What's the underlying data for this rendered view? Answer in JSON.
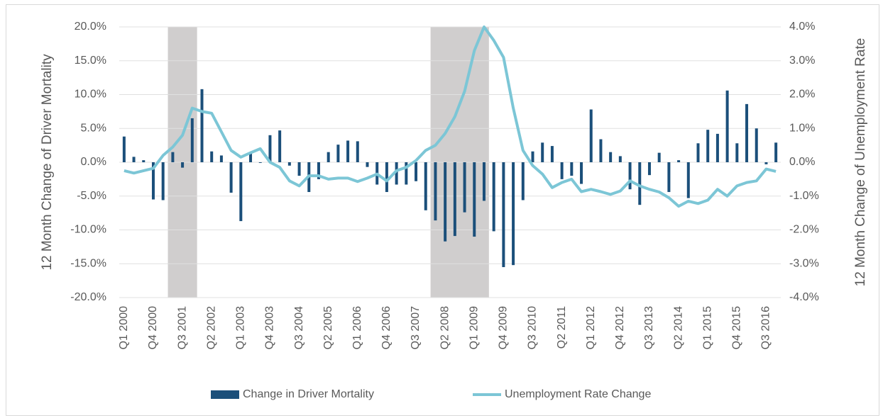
{
  "chart_data": {
    "type": "bar-line",
    "y_label": "12 Month Change of Driver Mortality",
    "y2_label": "12 Month Change of Unemployment Rate",
    "categories": [
      "Q1 2000",
      null,
      null,
      "Q4 2000",
      null,
      null,
      "Q3 2001",
      null,
      null,
      "Q2 2002",
      null,
      null,
      "Q1 2003",
      null,
      null,
      "Q4 2003",
      null,
      null,
      "Q3 2004",
      null,
      null,
      "Q2 2005",
      null,
      null,
      "Q1 2006",
      null,
      null,
      "Q4 2006",
      null,
      null,
      "Q3 2007",
      null,
      null,
      "Q2 2008",
      null,
      null,
      "Q1 2009",
      null,
      null,
      "Q4 2009",
      null,
      null,
      "Q3 2010",
      null,
      null,
      "Q2 2011",
      null,
      null,
      "Q1 2012",
      null,
      null,
      "Q4 2012",
      null,
      null,
      "Q3 2013",
      null,
      null,
      "Q2 2014",
      null,
      null,
      "Q1 2015",
      null,
      null,
      "Q4 2015",
      null,
      null,
      "Q3 2016",
      null
    ],
    "series": [
      {
        "name": "Change in Driver Mortality",
        "type": "bar",
        "color": "#1b4f7a",
        "values": [
          3.8,
          0.8,
          0.3,
          -5.5,
          -5.6,
          1.5,
          -0.8,
          6.5,
          10.8,
          1.6,
          1.0,
          -4.5,
          -8.7,
          1.5,
          -0.1,
          4.0,
          4.7,
          -0.5,
          -2.0,
          -4.4,
          -2.5,
          1.5,
          2.6,
          3.2,
          3.1,
          -0.7,
          -3.3,
          -4.4,
          -3.3,
          -3.3,
          -2.8,
          -7.1,
          -8.6,
          -11.7,
          -10.9,
          -7.4,
          -11.0,
          -5.7,
          -10.2,
          -15.5,
          -15.2,
          -5.6,
          1.6,
          2.9,
          2.4,
          -2.5,
          -2.0,
          -3.2,
          7.8,
          3.4,
          1.5,
          0.9,
          -4.0,
          -6.3,
          -1.9,
          1.4,
          -4.4,
          0.3,
          -5.3,
          2.8,
          4.8,
          4.2,
          10.6,
          2.8,
          8.6,
          5.0,
          -0.3,
          2.9
        ]
      },
      {
        "name": "Unemployment Rate Change",
        "type": "line",
        "axis": "y2",
        "color": "#7cc6d6",
        "values": [
          -0.25,
          -0.32,
          -0.25,
          -0.18,
          0.2,
          0.45,
          0.8,
          1.6,
          1.5,
          1.45,
          0.9,
          0.35,
          0.15,
          0.28,
          0.4,
          0.0,
          -0.15,
          -0.55,
          -0.7,
          -0.4,
          -0.4,
          -0.5,
          -0.47,
          -0.47,
          -0.57,
          -0.47,
          -0.35,
          -0.55,
          -0.25,
          -0.15,
          0.05,
          0.35,
          0.5,
          0.85,
          1.35,
          2.1,
          3.3,
          4.0,
          3.6,
          3.1,
          1.6,
          0.35,
          -0.1,
          -0.35,
          -0.75,
          -0.6,
          -0.5,
          -0.87,
          -0.8,
          -0.87,
          -0.95,
          -0.85,
          -0.55,
          -0.7,
          -0.8,
          -0.88,
          -1.05,
          -1.3,
          -1.15,
          -1.22,
          -1.12,
          -0.8,
          -1.0,
          -0.7,
          -0.6,
          -0.55,
          -0.2,
          -0.27
        ]
      }
    ],
    "shaded_spans": [
      [
        5,
        8
      ],
      [
        32,
        38
      ]
    ],
    "shade_color": "#d0cece",
    "ylim": [
      -20,
      20
    ],
    "yticks": [
      {
        "value": 20,
        "label": "20.0%"
      },
      {
        "value": 15,
        "label": "15.0%"
      },
      {
        "value": 10,
        "label": "10.0%"
      },
      {
        "value": 5,
        "label": "5.0%"
      },
      {
        "value": 0,
        "label": "0.0%"
      },
      {
        "value": -5,
        "label": "-5.0%"
      },
      {
        "value": -10,
        "label": "-10.0%"
      },
      {
        "value": -15,
        "label": "-15.0%"
      },
      {
        "value": -20,
        "label": "-20.0%"
      }
    ],
    "y2lim": [
      -4,
      4
    ],
    "y2ticks": [
      {
        "value": 4,
        "label": "4.0%"
      },
      {
        "value": 3,
        "label": "3.0%"
      },
      {
        "value": 2,
        "label": "2.0%"
      },
      {
        "value": 1,
        "label": "1.0%"
      },
      {
        "value": 0,
        "label": "0.0%"
      },
      {
        "value": -1,
        "label": "-1.0%"
      },
      {
        "value": -2,
        "label": "-2.0%"
      },
      {
        "value": -3,
        "label": "-3.0%"
      },
      {
        "value": -4,
        "label": "-4.0%"
      }
    ],
    "grid": true,
    "legend": "bottom"
  }
}
